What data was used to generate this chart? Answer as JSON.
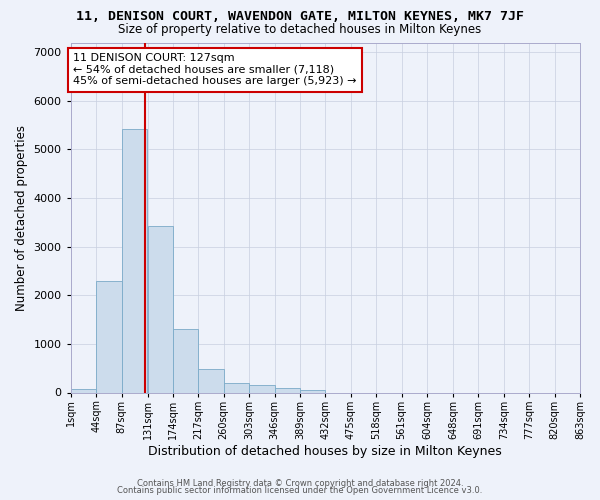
{
  "title": "11, DENISON COURT, WAVENDON GATE, MILTON KEYNES, MK7 7JF",
  "subtitle": "Size of property relative to detached houses in Milton Keynes",
  "xlabel": "Distribution of detached houses by size in Milton Keynes",
  "ylabel": "Number of detached properties",
  "bar_color": "#ccdcec",
  "bar_edge_color": "#7aaac8",
  "background_color": "#eef2fa",
  "grid_color": "#c8cfe0",
  "vline_x": 127,
  "vline_color": "#cc0000",
  "annotation_line1": "11 DENISON COURT: 127sqm",
  "annotation_line2": "← 54% of detached houses are smaller (7,118)",
  "annotation_line3": "45% of semi-detached houses are larger (5,923) →",
  "annotation_box_color": "white",
  "annotation_box_edge": "#cc0000",
  "bins_left": [
    1,
    44,
    87,
    131,
    174,
    217,
    260,
    303,
    346,
    389,
    432,
    475,
    518,
    561,
    604,
    648,
    691,
    734,
    777,
    820
  ],
  "bin_width": 43,
  "bin_heights": [
    75,
    2290,
    5430,
    3420,
    1310,
    475,
    190,
    150,
    85,
    60,
    0,
    0,
    0,
    0,
    0,
    0,
    0,
    0,
    0,
    0
  ],
  "xlim_min": 1,
  "xlim_max": 863,
  "ylim_min": 0,
  "ylim_max": 7200,
  "yticks": [
    0,
    1000,
    2000,
    3000,
    4000,
    5000,
    6000,
    7000
  ],
  "xtick_labels": [
    "1sqm",
    "44sqm",
    "87sqm",
    "131sqm",
    "174sqm",
    "217sqm",
    "260sqm",
    "303sqm",
    "346sqm",
    "389sqm",
    "432sqm",
    "475sqm",
    "518sqm",
    "561sqm",
    "604sqm",
    "648sqm",
    "691sqm",
    "734sqm",
    "777sqm",
    "820sqm",
    "863sqm"
  ],
  "xtick_positions": [
    1,
    44,
    87,
    131,
    174,
    217,
    260,
    303,
    346,
    389,
    432,
    475,
    518,
    561,
    604,
    648,
    691,
    734,
    777,
    820,
    863
  ],
  "footer1": "Contains HM Land Registry data © Crown copyright and database right 2024.",
  "footer2": "Contains public sector information licensed under the Open Government Licence v3.0."
}
